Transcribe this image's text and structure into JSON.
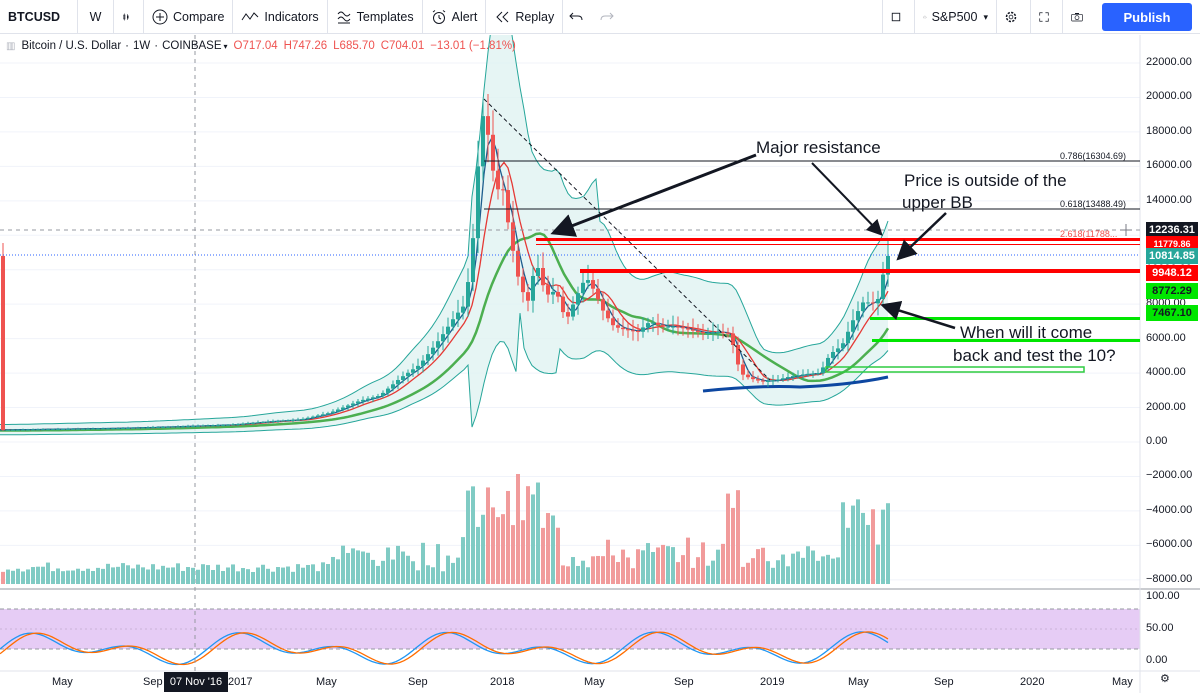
{
  "toolbar": {
    "symbol": "BTCUSD",
    "interval": "W",
    "compare": "Compare",
    "indicators": "Indicators",
    "templates": "Templates",
    "alert": "Alert",
    "replay": "Replay",
    "compare_symbol": "S&P500",
    "publish": "Publish"
  },
  "legend": {
    "title": "Bitcoin / U.S. Dollar",
    "interval": "1W",
    "exchange": "COINBASE",
    "open": "O717.04",
    "high": "H747.26",
    "low": "L685.70",
    "close": "C704.01",
    "change": "−13.01 (−1.81%)"
  },
  "annotations": {
    "major_resistance": "Major resistance",
    "outside_bb_line1": "Price is outside of the",
    "outside_bb_line2": "upper BB",
    "test_line1": "When will it come",
    "test_line2": "back and test the 10?"
  },
  "fib": {
    "f786": "0.786(16304.69)",
    "f618": "0.618(13488.49)",
    "f2618": "2.618(11788..."
  },
  "price_tags": {
    "crosshair": "12236.31",
    "current": "10814.85",
    "red_level": "9948.12",
    "green1": "8772.29",
    "green2": "7467.10",
    "hidden_red": "11779.86"
  },
  "x_labels": [
    "May",
    "Sep",
    "2017",
    "May",
    "Sep",
    "2018",
    "May",
    "Sep",
    "2019",
    "May",
    "Sep",
    "2020",
    "May"
  ],
  "x_badge": "07 Nov '16",
  "y_labels": [
    "22000.00",
    "20000.00",
    "18000.00",
    "16000.00",
    "14000.00",
    "12000.00",
    "10000.00",
    "8000.00",
    "6000.00",
    "4000.00",
    "2000.00",
    "0.00",
    "−2000.00",
    "−4000.00",
    "−6000.00",
    "−8000.00"
  ],
  "stoch_labels": [
    "100.00",
    "50.00",
    "0.00"
  ],
  "colors": {
    "up": "#26a69a",
    "down": "#ef5350",
    "bb_fill": "#e0f2f1",
    "ema_red": "#e53935",
    "ema_green": "#4caf50",
    "ema_blue": "#0d47a1",
    "stoch_bg": "#e6ccf5",
    "publish": "#2962ff"
  },
  "chart_data": {
    "type": "candlestick",
    "xlabel": "",
    "ylabel": "",
    "ylim": [
      -8000,
      22000
    ],
    "horizontal_levels": [
      {
        "name": "0.786",
        "value": 16304.69
      },
      {
        "name": "0.618",
        "value": 13488.49
      },
      {
        "name": "major resistance",
        "value": 11779.86
      },
      {
        "name": "red level",
        "value": 9948.12
      },
      {
        "name": "green level 1",
        "value": 8772.29
      },
      {
        "name": "green level 2",
        "value": 7467.1
      }
    ],
    "current_price": 10814.85,
    "crosshair_price": 12236.31,
    "stoch_range": [
      0,
      100
    ]
  }
}
